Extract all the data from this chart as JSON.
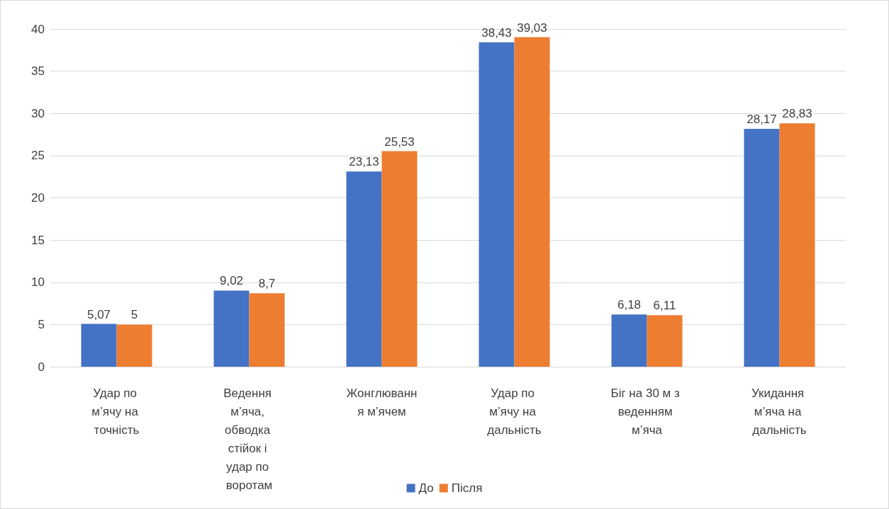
{
  "chart_data": {
    "type": "bar",
    "categories": [
      "Удар по м’ячу на точність",
      "Ведення м’яча, обводка стійок і удар по воротам",
      "Жонглювання м’ячем",
      "Удар по м’ячу на дальність",
      "Біг на 30 м з веденням м’яча",
      "Укидання м’яча на дальність"
    ],
    "series": [
      {
        "name": "До",
        "color": "#4472c4",
        "values": [
          5.07,
          9.02,
          23.13,
          38.43,
          6.18,
          28.17
        ],
        "value_labels": [
          "5,07",
          "9,02",
          "23,13",
          "38,43",
          "6,18",
          "28,17"
        ]
      },
      {
        "name": "Після",
        "color": "#ed7d31",
        "values": [
          5,
          8.7,
          25.53,
          39.03,
          6.11,
          28.83
        ],
        "value_labels": [
          "5",
          "8,7",
          "25,53",
          "39,03",
          "6,11",
          "28,83"
        ]
      }
    ],
    "ylim": [
      0,
      40
    ],
    "yticks": [
      0,
      5,
      10,
      15,
      20,
      25,
      30,
      35,
      40
    ],
    "grid": "y",
    "legend": "bottom"
  }
}
